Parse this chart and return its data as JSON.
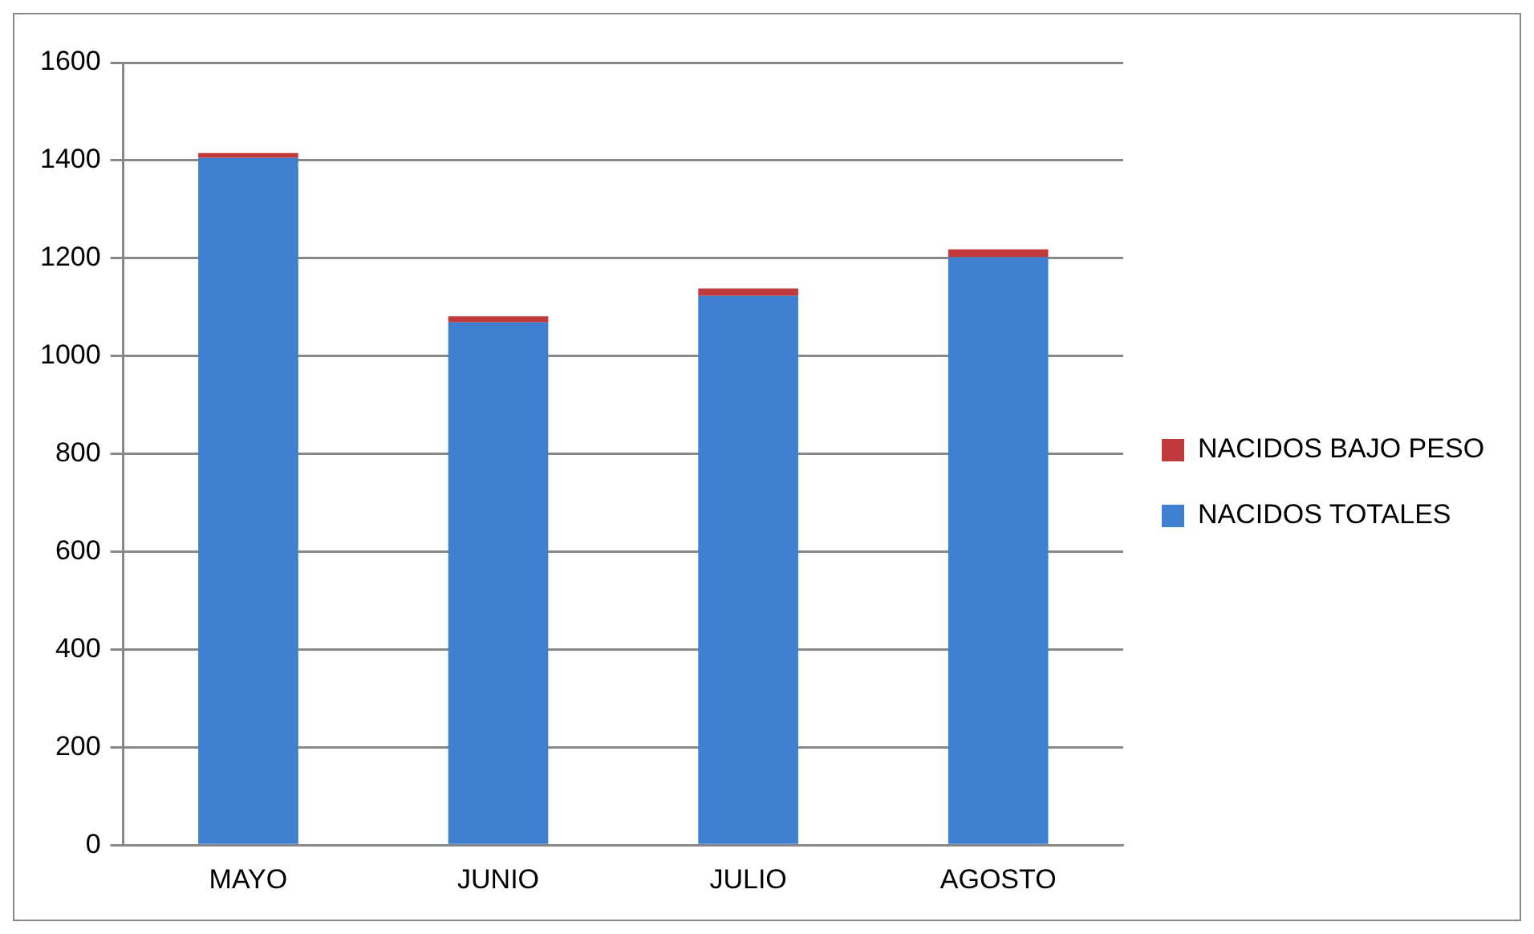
{
  "chart_data": {
    "type": "bar",
    "stacked": true,
    "categories": [
      "MAYO",
      "JUNIO",
      "JULIO",
      "AGOSTO"
    ],
    "series": [
      {
        "name": "NACIDOS TOTALES",
        "color": "#3f7fd0",
        "values": [
          1405,
          1069,
          1123,
          1202
        ]
      },
      {
        "name": "NACIDOS BAJO PESO",
        "color": "#c0393b",
        "values": [
          10,
          12,
          15,
          16
        ]
      }
    ],
    "ylim": [
      0,
      1600
    ],
    "yticks": [
      0,
      200,
      400,
      600,
      800,
      1000,
      1200,
      1400,
      1600
    ],
    "grid": "y",
    "legend": "right"
  }
}
